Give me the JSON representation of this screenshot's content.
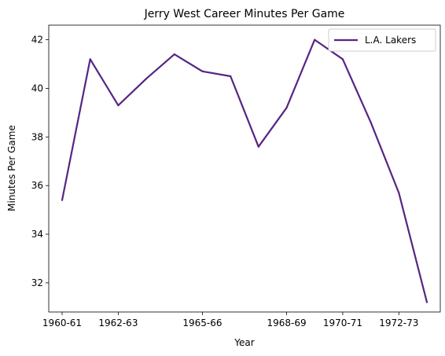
{
  "chart_data": {
    "type": "line",
    "title": "Jerry West Career Minutes Per Game",
    "xlabel": "Year",
    "ylabel": "Minutes Per Game",
    "x": [
      "1960-61",
      "1961-62",
      "1962-63",
      "1963-64",
      "1964-65",
      "1965-66",
      "1966-67",
      "1967-68",
      "1968-69",
      "1969-70",
      "1970-71",
      "1971-72",
      "1972-73",
      "1973-74"
    ],
    "x_tick_labels": [
      "1960-61",
      "1962-63",
      "1965-66",
      "1968-69",
      "1970-71",
      "1972-73"
    ],
    "series": [
      {
        "name": "L.A. Lakers",
        "color": "#552583",
        "values": [
          35.4,
          41.2,
          39.3,
          40.4,
          41.4,
          40.7,
          40.5,
          37.6,
          39.2,
          42.0,
          41.2,
          38.6,
          35.7,
          31.2
        ]
      }
    ],
    "ylim": [
      30.8,
      42.6
    ],
    "y_ticks": [
      32,
      34,
      36,
      38,
      40,
      42
    ],
    "grid": false,
    "legend_position": "top-right"
  }
}
